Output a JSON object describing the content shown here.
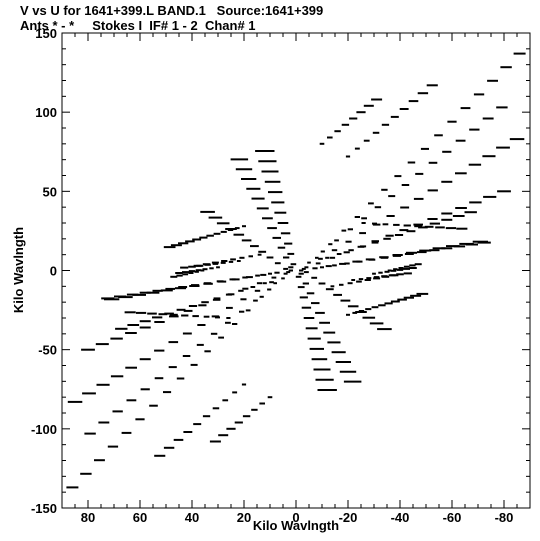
{
  "header": {
    "line1": "V vs U for 1641+399.L BAND.1   Source:1641+399",
    "line2": "Ants * - *     Stokes I  IF# 1 - 2  Chan# 1"
  },
  "chart_data": {
    "type": "scatter",
    "title": "V vs U for 1641+399.L BAND.1   Source:1641+399",
    "subtitle": "Ants * - *     Stokes I  IF# 1 - 2  Chan# 1",
    "xlabel": "Kilo Wavlngth",
    "ylabel": "Kilo Wavlngth",
    "xlim": [
      90,
      -90
    ],
    "ylim": [
      -150,
      150
    ],
    "x_ticks": [
      80,
      60,
      40,
      20,
      0,
      -20,
      -40,
      -60,
      -80
    ],
    "x_tick_labels": [
      "80",
      "60",
      "40",
      "20",
      "0",
      "-20",
      "-40",
      "-60",
      "-80"
    ],
    "y_ticks": [
      150,
      100,
      50,
      0,
      -50,
      -100,
      -150
    ],
    "y_tick_labels": [
      "150",
      "100",
      "50",
      "0",
      "-50",
      "-100",
      "-150"
    ],
    "grid": false,
    "marker": "dash",
    "color": "#000000",
    "uv_tracks": [
      {
        "u0": -8,
        "v0": 8,
        "du": -5.2,
        "dv": 8.6,
        "n": 16,
        "seg": 0.8
      },
      {
        "u0": -5,
        "v0": 5,
        "du": -5.3,
        "dv": 7.0,
        "n": 15,
        "seg": 0.8
      },
      {
        "u0": -4,
        "v0": 2,
        "du": -5.4,
        "dv": 5.4,
        "n": 16,
        "seg": 1.0
      },
      {
        "u0": -3,
        "v0": 1,
        "du": -5.5,
        "dv": 3.5,
        "n": 15,
        "seg": 1.0
      },
      {
        "u0": -2,
        "v0": 0,
        "du": -5.3,
        "dv": 1.4,
        "n": 14,
        "seg": 1.2
      },
      {
        "u0": 8,
        "v0": -8,
        "du": 5.2,
        "dv": -8.6,
        "n": 16,
        "seg": 0.8
      },
      {
        "u0": 5,
        "v0": -5,
        "du": 5.3,
        "dv": -7.0,
        "n": 15,
        "seg": 0.8
      },
      {
        "u0": 4,
        "v0": -2,
        "du": 5.4,
        "dv": -5.4,
        "n": 16,
        "seg": 1.0
      },
      {
        "u0": 3,
        "v0": -1,
        "du": 5.5,
        "dv": -3.5,
        "n": 15,
        "seg": 1.0
      },
      {
        "u0": 2,
        "v0": 0,
        "du": 5.3,
        "dv": -1.4,
        "n": 14,
        "seg": 1.2
      },
      {
        "u0": 2,
        "v0": 2,
        "du": 1.8,
        "dv": 6.2,
        "n": 12,
        "seg": 1.6
      },
      {
        "u0": 1,
        "v0": 4,
        "du": 1.0,
        "dv": 6.5,
        "n": 12,
        "seg": 1.8
      },
      {
        "u0": 4,
        "v0": 1,
        "du": 3.0,
        "dv": 3.6,
        "n": 11,
        "seg": 1.4
      },
      {
        "u0": -2,
        "v0": -2,
        "du": -1.8,
        "dv": -6.2,
        "n": 12,
        "seg": 1.6
      },
      {
        "u0": -1,
        "v0": -4,
        "du": -1.0,
        "dv": -6.5,
        "n": 12,
        "seg": 1.8
      },
      {
        "u0": -4,
        "v0": -1,
        "du": -3.0,
        "dv": -3.6,
        "n": 11,
        "seg": 1.4
      },
      {
        "u0": -10,
        "v0": 2,
        "du": -4.8,
        "dv": 1.2,
        "n": 14,
        "seg": 1.0
      },
      {
        "u0": -12,
        "v0": 8,
        "du": -4.6,
        "dv": 2.4,
        "n": 13,
        "seg": 1.0
      },
      {
        "u0": 10,
        "v0": -2,
        "du": 4.8,
        "dv": -1.2,
        "n": 14,
        "seg": 1.0
      },
      {
        "u0": 12,
        "v0": -8,
        "du": 4.6,
        "dv": -2.4,
        "n": 13,
        "seg": 1.0
      },
      {
        "u0": 14,
        "v0": 10,
        "du": 3.4,
        "dv": -1.0,
        "n": 8,
        "seg": 0.9
      },
      {
        "u0": 22,
        "v0": 6,
        "du": 3.0,
        "dv": -0.6,
        "n": 8,
        "seg": 0.9
      },
      {
        "u0": 30,
        "v0": 2,
        "du": 2.5,
        "dv": -0.6,
        "n": 7,
        "seg": 0.9
      },
      {
        "u0": 36,
        "v0": 0,
        "du": 2.2,
        "dv": -0.8,
        "n": 6,
        "seg": 0.9
      },
      {
        "u0": -14,
        "v0": -10,
        "du": -3.4,
        "dv": 1.0,
        "n": 8,
        "seg": 0.9
      },
      {
        "u0": -22,
        "v0": -6,
        "du": -3.0,
        "dv": 0.6,
        "n": 8,
        "seg": 0.9
      },
      {
        "u0": -30,
        "v0": -2,
        "du": -2.5,
        "dv": 0.6,
        "n": 7,
        "seg": 0.9
      },
      {
        "u0": -36,
        "v0": 0,
        "du": -2.2,
        "dv": 0.8,
        "n": 6,
        "seg": 0.9
      },
      {
        "u0": -20,
        "v0": 72,
        "du": -3.6,
        "dv": 5.0,
        "n": 10,
        "seg": 1.1
      },
      {
        "u0": -10,
        "v0": 80,
        "du": -3.0,
        "dv": 4.0,
        "n": 8,
        "seg": 1.3
      },
      {
        "u0": 20,
        "v0": -72,
        "du": 3.6,
        "dv": -5.0,
        "n": 10,
        "seg": 1.1
      },
      {
        "u0": 10,
        "v0": -80,
        "du": 3.0,
        "dv": -4.0,
        "n": 8,
        "seg": 1.3
      },
      {
        "u0": -26,
        "v0": 30,
        "du": -4.2,
        "dv": -0.4,
        "n": 10,
        "seg": 1.1
      },
      {
        "u0": 26,
        "v0": -30,
        "du": 4.2,
        "dv": 0.4,
        "n": 10,
        "seg": 1.1
      },
      {
        "u0": 20,
        "v0": 28,
        "du": 2.6,
        "dv": -1.2,
        "n": 12,
        "seg": 1.0
      },
      {
        "u0": -20,
        "v0": -28,
        "du": -2.6,
        "dv": 1.2,
        "n": 12,
        "seg": 1.0
      }
    ]
  }
}
